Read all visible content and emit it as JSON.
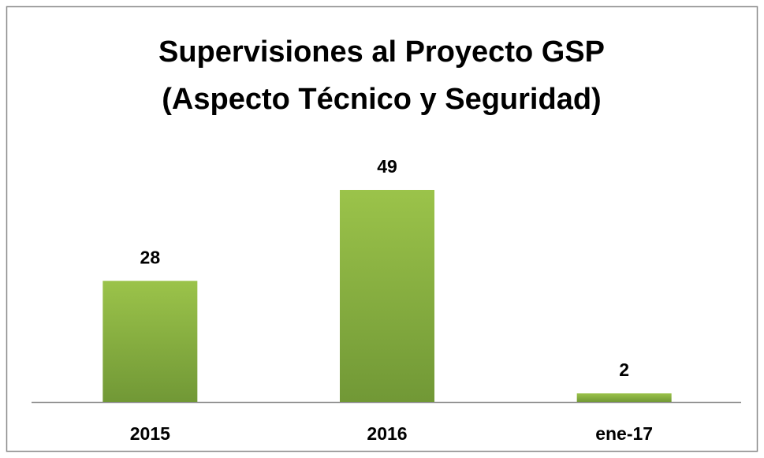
{
  "chart_data": {
    "type": "bar",
    "title": "Supervisiones al Proyecto GSP",
    "subtitle": "(Aspecto Técnico y Seguridad)",
    "categories": [
      "2015",
      "2016",
      "ene-17"
    ],
    "values": [
      28,
      49,
      2
    ],
    "color": "#9bc34a"
  }
}
